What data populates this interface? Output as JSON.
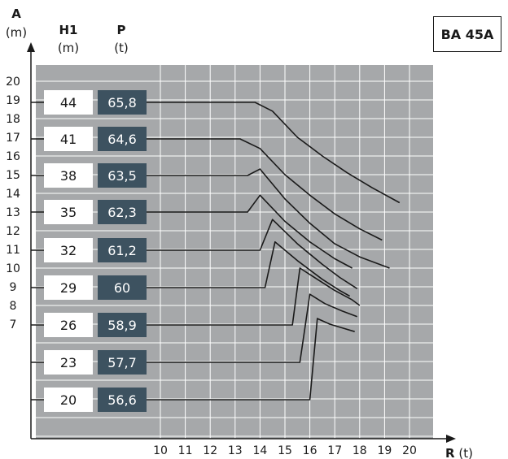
{
  "model": "BA 45A",
  "chart_data": {
    "type": "line",
    "y_axis": {
      "label": "A",
      "unit": "(m)",
      "ticks": [
        7,
        8,
        9,
        10,
        11,
        12,
        13,
        14,
        15,
        16,
        17,
        18,
        19,
        20
      ]
    },
    "x_axis": {
      "label": "R",
      "unit": "(t)",
      "ticks": [
        10,
        11,
        12,
        13,
        14,
        15,
        16,
        17,
        18,
        19,
        20
      ]
    },
    "col_h1": {
      "label": "H1",
      "unit": "(m)"
    },
    "col_p": {
      "label": "P",
      "unit": "(t)"
    },
    "grid": true,
    "rows": [
      {
        "h1": "44",
        "p": "65,8",
        "curve": [
          [
            13.8,
            19.5
          ],
          [
            14.5,
            18.4
          ],
          [
            15.5,
            17.0
          ],
          [
            16.5,
            16.0
          ],
          [
            17.5,
            15.1
          ],
          [
            18.5,
            14.3
          ],
          [
            19.6,
            13.5
          ]
        ]
      },
      {
        "h1": "41",
        "p": "64,6",
        "curve": [
          [
            13.2,
            18.0
          ],
          [
            14.0,
            16.4
          ],
          [
            15.0,
            15.0
          ],
          [
            16.0,
            13.9
          ],
          [
            17.0,
            12.9
          ],
          [
            18.0,
            12.1
          ],
          [
            18.9,
            11.5
          ]
        ]
      },
      {
        "h1": "38",
        "p": "63,5",
        "curve": [
          [
            13.5,
            16.5
          ],
          [
            14.0,
            15.3
          ],
          [
            15.0,
            13.7
          ],
          [
            16.0,
            12.4
          ],
          [
            17.0,
            11.3
          ],
          [
            18.0,
            10.6
          ],
          [
            19.2,
            10.0
          ]
        ]
      },
      {
        "h1": "35",
        "p": "62,3",
        "curve": [
          [
            13.5,
            15.0
          ],
          [
            14.0,
            13.9
          ],
          [
            15.0,
            12.5
          ],
          [
            16.0,
            11.4
          ],
          [
            17.0,
            10.5
          ],
          [
            17.7,
            10.0
          ]
        ]
      },
      {
        "h1": "32",
        "p": "61,2",
        "curve": [
          [
            14.0,
            13.5
          ],
          [
            14.5,
            12.6
          ],
          [
            15.5,
            11.3
          ],
          [
            16.5,
            10.2
          ],
          [
            17.2,
            9.5
          ],
          [
            17.9,
            8.9
          ]
        ]
      },
      {
        "h1": "29",
        "p": "60",
        "curve": [
          [
            14.2,
            12.0
          ],
          [
            14.6,
            11.4
          ],
          [
            15.5,
            10.4
          ],
          [
            16.5,
            9.4
          ],
          [
            17.2,
            8.8
          ],
          [
            17.6,
            8.5
          ]
        ]
      },
      {
        "h1": "26",
        "p": "58,9",
        "curve": [
          [
            15.3,
            10.5
          ],
          [
            15.6,
            10.0
          ],
          [
            16.3,
            9.4
          ],
          [
            17.0,
            8.8
          ],
          [
            17.7,
            8.3
          ],
          [
            18.0,
            8.0
          ]
        ]
      },
      {
        "h1": "23",
        "p": "57,7",
        "curve": [
          [
            15.6,
            9.0
          ],
          [
            16.0,
            8.6
          ],
          [
            16.6,
            8.1
          ],
          [
            17.3,
            7.7
          ],
          [
            17.9,
            7.4
          ]
        ]
      },
      {
        "h1": "20",
        "p": "56,6",
        "curve": [
          [
            16.0,
            7.5
          ],
          [
            16.3,
            7.3
          ],
          [
            16.8,
            7.0
          ],
          [
            17.3,
            6.8
          ],
          [
            17.8,
            6.6
          ]
        ]
      }
    ]
  }
}
